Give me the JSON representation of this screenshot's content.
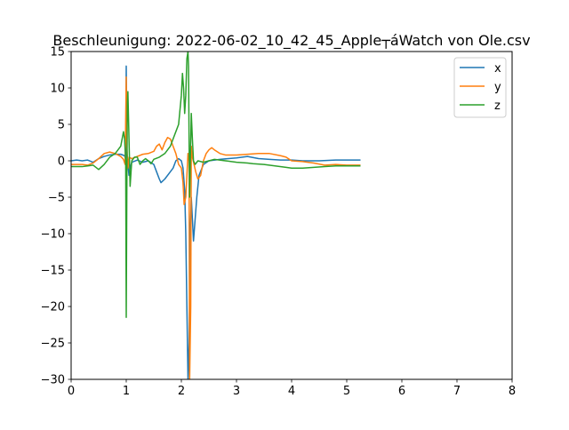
{
  "chart_data": {
    "type": "line",
    "title": "Beschleunigung: 2022-06-02_10_42_45_Apple┬áWatch von Ole.csv",
    "xlabel": "",
    "ylabel": "",
    "xlim": [
      0,
      8
    ],
    "ylim": [
      -30,
      15
    ],
    "xticks": [
      "0",
      "1",
      "2",
      "3",
      "4",
      "5",
      "6",
      "7",
      "8"
    ],
    "yticks": [
      "15",
      "10",
      "5",
      "0",
      "−5",
      "−10",
      "−15",
      "−20",
      "−25",
      "−30"
    ],
    "grid": false,
    "legend_position": "top-right",
    "series": [
      {
        "name": "x",
        "color": "#1f77b4",
        "points": [
          [
            0,
            0
          ],
          [
            0.1,
            0.1
          ],
          [
            0.2,
            0
          ],
          [
            0.3,
            0.1
          ],
          [
            0.4,
            -0.2
          ],
          [
            0.5,
            0.3
          ],
          [
            0.6,
            0.6
          ],
          [
            0.7,
            0.8
          ],
          [
            0.8,
            0.9
          ],
          [
            0.9,
            0.9
          ],
          [
            0.97,
            0.7
          ],
          [
            0.99,
            0.2
          ],
          [
            1.0,
            13
          ],
          [
            1.01,
            1
          ],
          [
            1.03,
            -0.5
          ],
          [
            1.05,
            -2
          ],
          [
            1.07,
            -1
          ],
          [
            1.1,
            -0.2
          ],
          [
            1.2,
            0.1
          ],
          [
            1.3,
            -0.2
          ],
          [
            1.4,
            0
          ],
          [
            1.5,
            -0.5
          ],
          [
            1.55,
            -1.5
          ],
          [
            1.6,
            -2.5
          ],
          [
            1.63,
            -3
          ],
          [
            1.7,
            -2.5
          ],
          [
            1.8,
            -1.5
          ],
          [
            1.85,
            -1
          ],
          [
            1.9,
            0
          ],
          [
            1.95,
            0.3
          ],
          [
            2.0,
            0
          ],
          [
            2.03,
            -1
          ],
          [
            2.06,
            -4
          ],
          [
            2.08,
            -10
          ],
          [
            2.1,
            -20
          ],
          [
            2.12,
            -30
          ],
          [
            2.14,
            -25
          ],
          [
            2.16,
            -10
          ],
          [
            2.18,
            -5
          ],
          [
            2.2,
            -8
          ],
          [
            2.22,
            -11
          ],
          [
            2.25,
            -8
          ],
          [
            2.28,
            -5
          ],
          [
            2.32,
            -2
          ],
          [
            2.4,
            -0.5
          ],
          [
            2.5,
            0
          ],
          [
            2.7,
            0.2
          ],
          [
            3.0,
            0.4
          ],
          [
            3.2,
            0.6
          ],
          [
            3.4,
            0.3
          ],
          [
            3.6,
            0.2
          ],
          [
            3.8,
            0.1
          ],
          [
            4.0,
            0.1
          ],
          [
            4.2,
            0
          ],
          [
            4.5,
            0
          ],
          [
            4.8,
            0.1
          ],
          [
            5.0,
            0.1
          ],
          [
            5.25,
            0.1
          ]
        ]
      },
      {
        "name": "y",
        "color": "#ff7f0e",
        "points": [
          [
            0,
            -0.5
          ],
          [
            0.2,
            -0.5
          ],
          [
            0.3,
            -0.6
          ],
          [
            0.4,
            -0.3
          ],
          [
            0.5,
            0.3
          ],
          [
            0.6,
            1
          ],
          [
            0.7,
            1.2
          ],
          [
            0.8,
            1
          ],
          [
            0.9,
            0.6
          ],
          [
            0.95,
            0.2
          ],
          [
            0.98,
            -0.5
          ],
          [
            1.0,
            11.5
          ],
          [
            1.01,
            2
          ],
          [
            1.03,
            -1
          ],
          [
            1.05,
            0.5
          ],
          [
            1.1,
            0.3
          ],
          [
            1.2,
            0.6
          ],
          [
            1.3,
            0.9
          ],
          [
            1.4,
            1
          ],
          [
            1.5,
            1.3
          ],
          [
            1.55,
            2
          ],
          [
            1.6,
            2.3
          ],
          [
            1.65,
            1.5
          ],
          [
            1.7,
            2.5
          ],
          [
            1.75,
            3.2
          ],
          [
            1.8,
            3
          ],
          [
            1.85,
            2
          ],
          [
            1.9,
            1
          ],
          [
            1.95,
            -0.5
          ],
          [
            2.0,
            -1
          ],
          [
            2.03,
            -3
          ],
          [
            2.05,
            -6
          ],
          [
            2.08,
            -5
          ],
          [
            2.1,
            -2
          ],
          [
            2.12,
            1
          ],
          [
            2.14,
            0
          ],
          [
            2.15,
            -30
          ],
          [
            2.17,
            -20
          ],
          [
            2.18,
            2
          ],
          [
            2.2,
            0.5
          ],
          [
            2.23,
            -0.5
          ],
          [
            2.26,
            -1.5
          ],
          [
            2.3,
            -2.5
          ],
          [
            2.35,
            -2
          ],
          [
            2.4,
            0
          ],
          [
            2.45,
            1
          ],
          [
            2.5,
            1.5
          ],
          [
            2.55,
            1.8
          ],
          [
            2.6,
            1.5
          ],
          [
            2.7,
            1
          ],
          [
            2.8,
            0.8
          ],
          [
            3.0,
            0.8
          ],
          [
            3.2,
            0.9
          ],
          [
            3.4,
            1
          ],
          [
            3.6,
            1
          ],
          [
            3.8,
            0.7
          ],
          [
            3.9,
            0.5
          ],
          [
            4.0,
            0
          ],
          [
            4.2,
            -0.1
          ],
          [
            4.4,
            -0.3
          ],
          [
            4.6,
            -0.6
          ],
          [
            4.8,
            -0.5
          ],
          [
            5.0,
            -0.6
          ],
          [
            5.25,
            -0.6
          ]
        ]
      },
      {
        "name": "z",
        "color": "#2ca02c",
        "points": [
          [
            0,
            -0.8
          ],
          [
            0.2,
            -0.8
          ],
          [
            0.3,
            -0.7
          ],
          [
            0.4,
            -0.6
          ],
          [
            0.5,
            -1.2
          ],
          [
            0.6,
            -0.5
          ],
          [
            0.7,
            0.5
          ],
          [
            0.8,
            1
          ],
          [
            0.9,
            2
          ],
          [
            0.95,
            4
          ],
          [
            0.97,
            3
          ],
          [
            0.99,
            0
          ],
          [
            1.0,
            -21.5
          ],
          [
            1.01,
            -5
          ],
          [
            1.02,
            8
          ],
          [
            1.03,
            9.5
          ],
          [
            1.05,
            3
          ],
          [
            1.07,
            -3.5
          ],
          [
            1.1,
            0
          ],
          [
            1.15,
            0.5
          ],
          [
            1.2,
            0.5
          ],
          [
            1.25,
            -0.5
          ],
          [
            1.3,
            0
          ],
          [
            1.35,
            0.3
          ],
          [
            1.4,
            0
          ],
          [
            1.45,
            -0.4
          ],
          [
            1.5,
            0.2
          ],
          [
            1.6,
            0.5
          ],
          [
            1.7,
            1
          ],
          [
            1.8,
            2
          ],
          [
            1.85,
            3
          ],
          [
            1.9,
            4
          ],
          [
            1.95,
            5
          ],
          [
            2.0,
            9
          ],
          [
            2.02,
            12
          ],
          [
            2.04,
            10
          ],
          [
            2.06,
            6.5
          ],
          [
            2.08,
            9
          ],
          [
            2.1,
            14
          ],
          [
            2.12,
            15
          ],
          [
            2.13,
            13
          ],
          [
            2.14,
            3
          ],
          [
            2.15,
            -5
          ],
          [
            2.16,
            -1
          ],
          [
            2.18,
            6.5
          ],
          [
            2.2,
            3
          ],
          [
            2.22,
            0
          ],
          [
            2.25,
            -0.5
          ],
          [
            2.3,
            0
          ],
          [
            2.4,
            -0.2
          ],
          [
            2.5,
            0
          ],
          [
            2.6,
            0.2
          ],
          [
            2.8,
            0
          ],
          [
            3.0,
            -0.2
          ],
          [
            3.2,
            -0.3
          ],
          [
            3.3,
            -0.4
          ],
          [
            3.5,
            -0.5
          ],
          [
            3.7,
            -0.7
          ],
          [
            3.9,
            -0.9
          ],
          [
            4.0,
            -1
          ],
          [
            4.2,
            -1
          ],
          [
            4.4,
            -0.9
          ],
          [
            4.6,
            -0.8
          ],
          [
            4.8,
            -0.7
          ],
          [
            5.0,
            -0.7
          ],
          [
            5.25,
            -0.7
          ]
        ]
      }
    ]
  }
}
